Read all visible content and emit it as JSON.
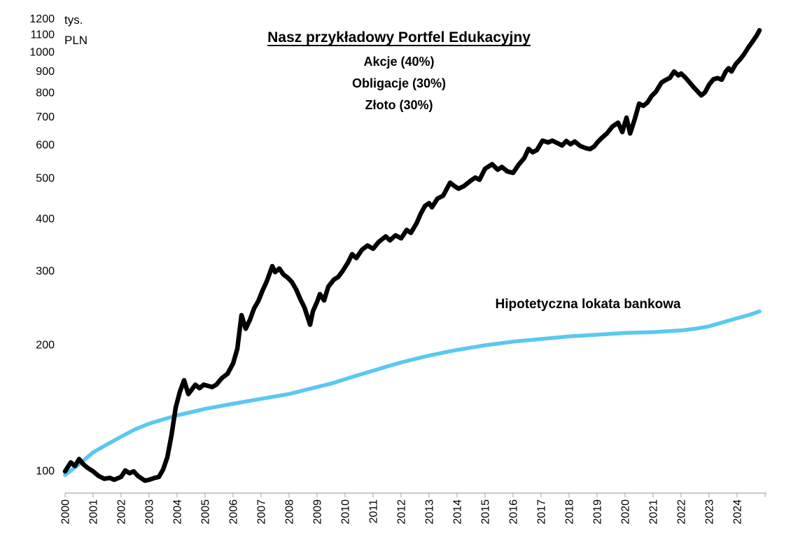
{
  "header": {
    "unit_line1": "tys.",
    "unit_line2": "PLN",
    "title": "Nasz przykładowy Portfel Edukacyjny",
    "subtitles": [
      "Akcje (40%)",
      "Obligacje (30%)",
      "Złoto (30%)"
    ]
  },
  "colors": {
    "portfolio_line": "#000000",
    "deposit_line": "#5BC8F0",
    "axis_line": "#C9C9C9",
    "tick_mark": "#BFBFBF",
    "text": "#000000"
  },
  "chart_data": {
    "type": "line",
    "title": "Nasz przykładowy Portfel Edukacyjny",
    "subtitle_lines": [
      "Akcje (40%)",
      "Obligacje (30%)",
      "Złoto (30%)"
    ],
    "y_unit": "tys. PLN",
    "y_scale": "log",
    "y_ticks": [
      100,
      200,
      300,
      400,
      500,
      600,
      700,
      800,
      900,
      1000,
      1100,
      1200
    ],
    "ylim": [
      95,
      1250
    ],
    "x_ticks": [
      2000,
      2001,
      2002,
      2003,
      2004,
      2005,
      2006,
      2007,
      2008,
      2009,
      2010,
      2011,
      2012,
      2013,
      2014,
      2015,
      2016,
      2017,
      2018,
      2019,
      2020,
      2021,
      2022,
      2023,
      2024
    ],
    "x_range": [
      2000,
      2025
    ],
    "grid": false,
    "legend_position": "inline-annotation",
    "annotations": [
      {
        "text": "Hipotetyczna lokata bankowa",
        "x": 2018.7,
        "y": 250,
        "color": "#5BC8F0"
      }
    ],
    "series": [
      {
        "name": "Portfel Edukacyjny (Akcje 40%, Obligacje 30%, Złoto 30%)",
        "color": "#000000",
        "points": [
          [
            2000.0,
            100
          ],
          [
            2000.2,
            105
          ],
          [
            2000.35,
            103
          ],
          [
            2000.5,
            107
          ],
          [
            2000.65,
            104
          ],
          [
            2000.8,
            102
          ],
          [
            2001.0,
            100
          ],
          [
            2001.2,
            97.5
          ],
          [
            2001.4,
            96
          ],
          [
            2001.6,
            96.5
          ],
          [
            2001.75,
            95.5
          ],
          [
            2002.0,
            97
          ],
          [
            2002.15,
            100.5
          ],
          [
            2002.3,
            99
          ],
          [
            2002.45,
            100
          ],
          [
            2002.6,
            97.5
          ],
          [
            2002.85,
            95
          ],
          [
            2003.0,
            95.5
          ],
          [
            2003.2,
            96.5
          ],
          [
            2003.35,
            97
          ],
          [
            2003.5,
            101
          ],
          [
            2003.65,
            108
          ],
          [
            2003.8,
            122
          ],
          [
            2003.95,
            142
          ],
          [
            2004.1,
            155
          ],
          [
            2004.25,
            165
          ],
          [
            2004.4,
            153
          ],
          [
            2004.5,
            156
          ],
          [
            2004.65,
            161
          ],
          [
            2004.8,
            158
          ],
          [
            2004.95,
            161
          ],
          [
            2005.1,
            160
          ],
          [
            2005.25,
            159
          ],
          [
            2005.4,
            161
          ],
          [
            2005.6,
            167
          ],
          [
            2005.8,
            171
          ],
          [
            2006.0,
            181
          ],
          [
            2006.15,
            196
          ],
          [
            2006.3,
            236
          ],
          [
            2006.45,
            219
          ],
          [
            2006.6,
            230
          ],
          [
            2006.75,
            245
          ],
          [
            2006.9,
            255
          ],
          [
            2007.05,
            270
          ],
          [
            2007.2,
            284
          ],
          [
            2007.4,
            309
          ],
          [
            2007.5,
            299
          ],
          [
            2007.65,
            305
          ],
          [
            2007.8,
            295
          ],
          [
            2007.95,
            290
          ],
          [
            2008.1,
            283
          ],
          [
            2008.25,
            272
          ],
          [
            2008.4,
            258
          ],
          [
            2008.55,
            246
          ],
          [
            2008.75,
            224
          ],
          [
            2008.85,
            241
          ],
          [
            2009.0,
            254
          ],
          [
            2009.1,
            265
          ],
          [
            2009.25,
            256
          ],
          [
            2009.4,
            276
          ],
          [
            2009.6,
            287
          ],
          [
            2009.75,
            291
          ],
          [
            2009.9,
            300
          ],
          [
            2010.1,
            315
          ],
          [
            2010.25,
            330
          ],
          [
            2010.4,
            323
          ],
          [
            2010.6,
            338
          ],
          [
            2010.8,
            346
          ],
          [
            2011.0,
            340
          ],
          [
            2011.2,
            353
          ],
          [
            2011.45,
            364
          ],
          [
            2011.6,
            356
          ],
          [
            2011.8,
            366
          ],
          [
            2012.0,
            360
          ],
          [
            2012.2,
            377
          ],
          [
            2012.35,
            371
          ],
          [
            2012.55,
            391
          ],
          [
            2012.7,
            412
          ],
          [
            2012.85,
            430
          ],
          [
            2013.0,
            437
          ],
          [
            2013.1,
            427
          ],
          [
            2013.3,
            448
          ],
          [
            2013.5,
            455
          ],
          [
            2013.75,
            489
          ],
          [
            2013.9,
            480
          ],
          [
            2014.05,
            473
          ],
          [
            2014.25,
            480
          ],
          [
            2014.5,
            495
          ],
          [
            2014.65,
            503
          ],
          [
            2014.8,
            497
          ],
          [
            2015.0,
            528
          ],
          [
            2015.25,
            541
          ],
          [
            2015.45,
            525
          ],
          [
            2015.6,
            533
          ],
          [
            2015.8,
            520
          ],
          [
            2016.0,
            516
          ],
          [
            2016.2,
            540
          ],
          [
            2016.4,
            560
          ],
          [
            2016.55,
            589
          ],
          [
            2016.7,
            578
          ],
          [
            2016.85,
            585
          ],
          [
            2017.05,
            616
          ],
          [
            2017.25,
            610
          ],
          [
            2017.4,
            616
          ],
          [
            2017.6,
            607
          ],
          [
            2017.75,
            600
          ],
          [
            2017.9,
            615
          ],
          [
            2018.05,
            604
          ],
          [
            2018.2,
            613
          ],
          [
            2018.4,
            598
          ],
          [
            2018.6,
            591
          ],
          [
            2018.75,
            588
          ],
          [
            2018.9,
            597
          ],
          [
            2019.0,
            609
          ],
          [
            2019.15,
            624
          ],
          [
            2019.35,
            641
          ],
          [
            2019.55,
            666
          ],
          [
            2019.75,
            680
          ],
          [
            2019.9,
            646
          ],
          [
            2020.05,
            699
          ],
          [
            2020.18,
            641
          ],
          [
            2020.35,
            695
          ],
          [
            2020.5,
            755
          ],
          [
            2020.65,
            746
          ],
          [
            2020.8,
            760
          ],
          [
            2020.95,
            788
          ],
          [
            2021.1,
            806
          ],
          [
            2021.3,
            848
          ],
          [
            2021.45,
            860
          ],
          [
            2021.6,
            870
          ],
          [
            2021.75,
            901
          ],
          [
            2021.9,
            882
          ],
          [
            2022.0,
            891
          ],
          [
            2022.15,
            872
          ],
          [
            2022.3,
            849
          ],
          [
            2022.45,
            826
          ],
          [
            2022.6,
            806
          ],
          [
            2022.72,
            790
          ],
          [
            2022.85,
            803
          ],
          [
            2023.0,
            838
          ],
          [
            2023.15,
            863
          ],
          [
            2023.3,
            869
          ],
          [
            2023.45,
            861
          ],
          [
            2023.6,
            902
          ],
          [
            2023.7,
            917
          ],
          [
            2023.8,
            901
          ],
          [
            2023.95,
            938
          ],
          [
            2024.1,
            962
          ],
          [
            2024.25,
            991
          ],
          [
            2024.4,
            1028
          ],
          [
            2024.55,
            1062
          ],
          [
            2024.7,
            1098
          ],
          [
            2024.8,
            1130
          ]
        ]
      },
      {
        "name": "Hipotetyczna lokata bankowa",
        "color": "#5BC8F0",
        "points": [
          [
            2000.0,
            98
          ],
          [
            2000.5,
            104
          ],
          [
            2001.0,
            111
          ],
          [
            2001.5,
            116
          ],
          [
            2002.0,
            121
          ],
          [
            2002.5,
            126
          ],
          [
            2003.0,
            130
          ],
          [
            2003.5,
            133
          ],
          [
            2004.0,
            136
          ],
          [
            2004.5,
            138.5
          ],
          [
            2005.0,
            141
          ],
          [
            2005.5,
            143
          ],
          [
            2006.0,
            145
          ],
          [
            2006.5,
            147
          ],
          [
            2007.0,
            149
          ],
          [
            2007.5,
            151
          ],
          [
            2008.0,
            153
          ],
          [
            2008.5,
            156
          ],
          [
            2009.0,
            159
          ],
          [
            2009.5,
            162
          ],
          [
            2010.0,
            166
          ],
          [
            2010.5,
            170
          ],
          [
            2011.0,
            174
          ],
          [
            2011.5,
            178
          ],
          [
            2012.0,
            182
          ],
          [
            2012.5,
            185.5
          ],
          [
            2013.0,
            189
          ],
          [
            2013.5,
            192
          ],
          [
            2014.0,
            195
          ],
          [
            2014.5,
            197.5
          ],
          [
            2015.0,
            200
          ],
          [
            2015.5,
            202
          ],
          [
            2016.0,
            204
          ],
          [
            2016.5,
            205.5
          ],
          [
            2017.0,
            207
          ],
          [
            2017.5,
            208.5
          ],
          [
            2018.0,
            210
          ],
          [
            2018.5,
            211
          ],
          [
            2019.0,
            212
          ],
          [
            2019.5,
            213
          ],
          [
            2020.0,
            214
          ],
          [
            2020.5,
            214.5
          ],
          [
            2021.0,
            215
          ],
          [
            2021.5,
            216
          ],
          [
            2022.0,
            217
          ],
          [
            2022.5,
            219
          ],
          [
            2023.0,
            222
          ],
          [
            2023.5,
            227
          ],
          [
            2024.0,
            232
          ],
          [
            2024.4,
            236
          ],
          [
            2024.8,
            241
          ]
        ]
      }
    ]
  }
}
